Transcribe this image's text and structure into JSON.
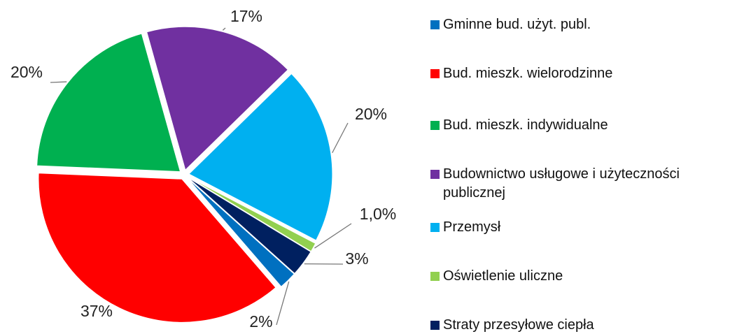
{
  "chart_data": {
    "type": "pie",
    "categories": [
      "Gminne bud. użyt. publ.",
      "Bud. mieszk. wielorodzinne",
      "Bud. mieszk. indywidualne",
      "Budownictwo usługowe i użyteczności publicznej",
      "Przemysł",
      "Oświetlenie uliczne",
      "Straty przesyłowe ciepła"
    ],
    "values": [
      2,
      37,
      20,
      17,
      20,
      1,
      3
    ],
    "value_labels": [
      "2%",
      "37%",
      "20%",
      "17%",
      "20%",
      "1,0%",
      "3%"
    ],
    "colors": [
      "#0070c0",
      "#ff0000",
      "#00b050",
      "#7030a0",
      "#00b0f0",
      "#92d050",
      "#002060"
    ],
    "legend": "right"
  }
}
